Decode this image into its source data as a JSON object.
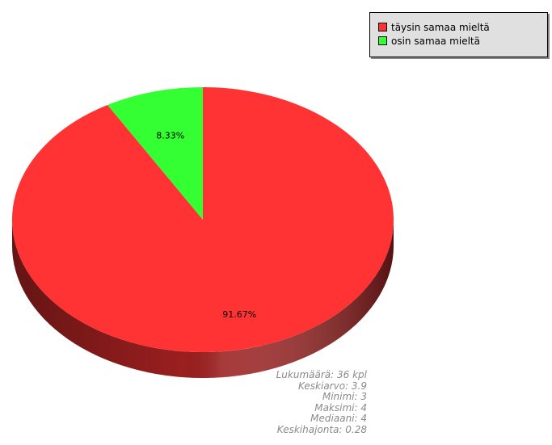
{
  "chart_data": {
    "type": "pie",
    "title": "",
    "slices": [
      {
        "label": "täysin samaa mieltä",
        "value": 91.67,
        "display": "91.67%",
        "color": "#ff3333",
        "side_color": "#9b1f1f"
      },
      {
        "label": "osin samaa mieltä",
        "value": 8.33,
        "display": "8.33%",
        "color": "#33ff33",
        "side_color": "#1f9b1f"
      }
    ],
    "legend_position": "top-right",
    "three_d": true
  },
  "stats": [
    "Lukumäärä: 36 kpl",
    "Keskiarvo: 3.9",
    "Minimi: 3",
    "Maksimi: 4",
    "Mediaani: 4",
    "Keskihajonta: 0.28"
  ]
}
